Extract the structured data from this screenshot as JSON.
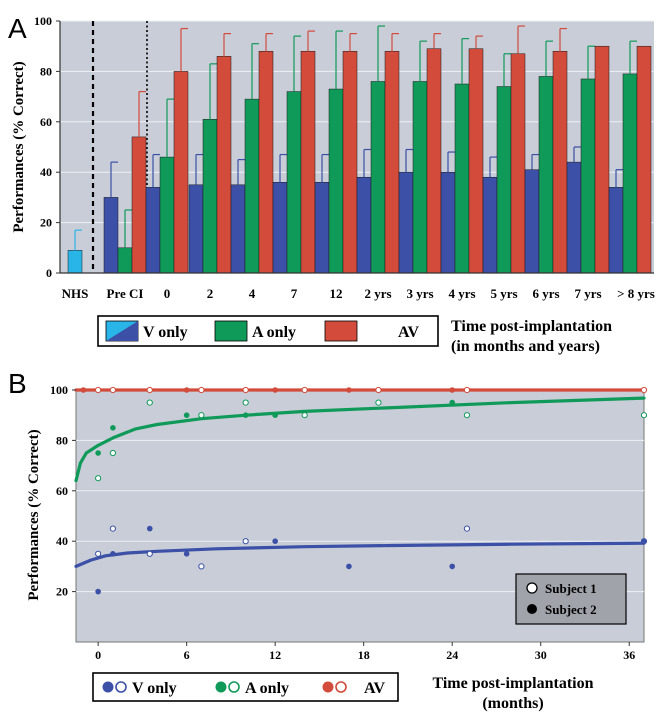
{
  "chart_data": [
    {
      "panel_label": "A",
      "type": "bar",
      "ylabel": "Performances (% Correct)",
      "ylim": [
        0,
        100
      ],
      "yticks": [
        0,
        20,
        40,
        60,
        80,
        100
      ],
      "categories": [
        "NHS",
        "Pre CI",
        "0",
        "2",
        "4",
        "7",
        "12",
        "2 yrs",
        "3 yrs",
        "4 yrs",
        "5 yrs",
        "6 yrs",
        "7 yrs",
        "> 8  yrs"
      ],
      "series": [
        {
          "name": "V only",
          "values": [
            9,
            30,
            34,
            35,
            35,
            36,
            36,
            38,
            40,
            40,
            38,
            41,
            44,
            34
          ],
          "errors": [
            8,
            14,
            13,
            12,
            10,
            11,
            11,
            11,
            9,
            8,
            8,
            6,
            6,
            7
          ]
        },
        {
          "name": "A only",
          "values": [
            null,
            10,
            46,
            61,
            69,
            72,
            73,
            76,
            76,
            75,
            74,
            78,
            77,
            79
          ],
          "errors": [
            null,
            15,
            23,
            22,
            22,
            22,
            23,
            22,
            16,
            18,
            13,
            14,
            13,
            13
          ]
        },
        {
          "name": "AV",
          "values": [
            null,
            54,
            80,
            86,
            88,
            88,
            88,
            88,
            89,
            89,
            87,
            88,
            90,
            90
          ],
          "errors": [
            null,
            18,
            17,
            9,
            7,
            8,
            7,
            7,
            6,
            5,
            11,
            9,
            null,
            null
          ]
        }
      ],
      "legend": [
        "V only",
        "A only",
        "AV"
      ],
      "xlabel_line1": "Time post-implantation",
      "xlabel_line2": "(in months and years)",
      "colors": {
        "v": "#3b50a6",
        "v_nhs": "#2ab5e8",
        "a": "#109a59",
        "av": "#d24b3b",
        "bg": "#c8cdd8"
      }
    },
    {
      "panel_label": "B",
      "type": "scatter",
      "ylabel": "Performances (% Correct)",
      "ylim": [
        0,
        100
      ],
      "yticks": [
        20,
        40,
        60,
        80,
        100
      ],
      "xlim": [
        -1.5,
        37
      ],
      "xticks": [
        0,
        6,
        12,
        18,
        24,
        30,
        36
      ],
      "xlabel_line1": "Time post-implantation",
      "xlabel_line2": "(months)",
      "series": [
        {
          "name": "V only",
          "color": "#3b50a6",
          "subject1": [
            [
              0,
              35
            ],
            [
              1,
              45
            ],
            [
              3.5,
              35
            ],
            [
              7,
              30
            ],
            [
              10,
              40
            ],
            [
              25,
              45
            ],
            [
              37,
              40
            ]
          ],
          "subject2": [
            [
              0,
              20
            ],
            [
              1,
              35
            ],
            [
              3.5,
              45
            ],
            [
              6,
              35
            ],
            [
              12,
              40
            ],
            [
              17,
              30
            ],
            [
              24,
              30
            ],
            [
              37,
              40
            ]
          ],
          "fit": [
            [
              -1.5,
              30
            ],
            [
              -0.5,
              32.5
            ],
            [
              0.5,
              34.2
            ],
            [
              2,
              35.3
            ],
            [
              4,
              36
            ],
            [
              8,
              37
            ],
            [
              14,
              37.8
            ],
            [
              20,
              38.3
            ],
            [
              28,
              38.8
            ],
            [
              37,
              39.2
            ]
          ]
        },
        {
          "name": "A only",
          "color": "#109a59",
          "subject1": [
            [
              0,
              65
            ],
            [
              1,
              75
            ],
            [
              3.5,
              95
            ],
            [
              7,
              90
            ],
            [
              10,
              95
            ],
            [
              14,
              90
            ],
            [
              19,
              95
            ],
            [
              25,
              90
            ],
            [
              37,
              90
            ]
          ],
          "subject2": [
            [
              0,
              75
            ],
            [
              1,
              85
            ],
            [
              6,
              90
            ],
            [
              10,
              90
            ],
            [
              12,
              90
            ],
            [
              24,
              95
            ]
          ],
          "fit": [
            [
              -1.5,
              64
            ],
            [
              -1.2,
              71
            ],
            [
              -0.8,
              75
            ],
            [
              0,
              78
            ],
            [
              1,
              81
            ],
            [
              2.5,
              84.5
            ],
            [
              4,
              86.3
            ],
            [
              7,
              88.6
            ],
            [
              10,
              90
            ],
            [
              14,
              91.5
            ],
            [
              20,
              93
            ],
            [
              28,
              95
            ],
            [
              37,
              96.8
            ]
          ]
        },
        {
          "name": "AV",
          "color": "#d24b3b",
          "subject1": [
            [
              0,
              100
            ],
            [
              1,
              100
            ],
            [
              3.5,
              100
            ],
            [
              7,
              100
            ],
            [
              10,
              100
            ],
            [
              14,
              100
            ],
            [
              19,
              100
            ],
            [
              25,
              100
            ],
            [
              37,
              100
            ]
          ],
          "subject2": [
            [
              -1,
              100
            ],
            [
              6,
              100
            ],
            [
              12,
              100
            ],
            [
              17,
              100
            ],
            [
              24,
              100
            ]
          ],
          "fit": [
            [
              -1.5,
              100
            ],
            [
              37,
              100
            ]
          ]
        }
      ],
      "inset_legend": [
        "Subject 1",
        "Subject 2"
      ],
      "legend": [
        "V only",
        "A only",
        "AV"
      ],
      "colors": {
        "bg": "#c8cdd8"
      }
    }
  ]
}
